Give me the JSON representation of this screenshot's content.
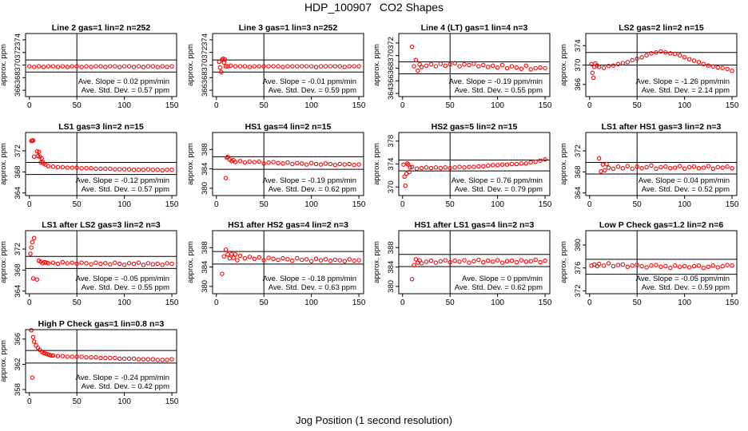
{
  "page": {
    "title_id": "HDP_100907",
    "title_text": "CO2 Shapes",
    "x_axis_title": "Jog Position (1 second resolution)"
  },
  "colors": {
    "points": "#ff0000",
    "axes": "#000000",
    "background": "#ffffff"
  },
  "chart_data": [
    {
      "type": "scatter",
      "title": "Line 2 gas=1 lin=2 n=252",
      "ylabel": "approx. ppm",
      "xlim": [
        -4,
        155
      ],
      "ylim": [
        365,
        375
      ],
      "xticks": [
        0,
        50,
        100,
        150
      ],
      "yticks": [
        366,
        368,
        370,
        372,
        374
      ],
      "hlines": [
        368.9,
        370.8
      ],
      "vline": 50,
      "slope": "Ave. Slope = 0.02 ppm/min",
      "stddev": "Ave. Std. Dev. = 0.57 ppm",
      "x": [
        0,
        5,
        10,
        15,
        20,
        25,
        30,
        35,
        40,
        45,
        50,
        55,
        60,
        65,
        70,
        75,
        80,
        85,
        90,
        95,
        100,
        105,
        110,
        115,
        120,
        125,
        130,
        135,
        140,
        145,
        150
      ],
      "y": [
        369.8,
        369.7,
        369.8,
        369.7,
        369.8,
        369.8,
        369.7,
        369.8,
        369.7,
        369.8,
        369.8,
        369.7,
        369.8,
        369.7,
        369.8,
        369.8,
        369.7,
        369.8,
        369.8,
        369.7,
        369.8,
        369.8,
        369.7,
        369.8,
        369.7,
        369.8,
        369.8,
        369.7,
        369.8,
        369.7,
        369.8
      ]
    },
    {
      "type": "scatter",
      "title": "Line 3 gas=1 lin=3 n=252",
      "ylabel": "approx. ppm",
      "xlim": [
        -4,
        155
      ],
      "ylim": [
        365,
        375
      ],
      "xticks": [
        0,
        50,
        100,
        150
      ],
      "yticks": [
        366,
        368,
        370,
        372,
        374
      ],
      "hlines": [
        368.9,
        370.8
      ],
      "vline": 50,
      "slope": "Ave. Slope = -0.01 ppm/min",
      "stddev": "Ave. Std. Dev. = 0.59 ppm",
      "x": [
        3,
        4,
        5,
        6,
        7,
        8,
        9,
        10,
        12,
        15,
        20,
        25,
        30,
        35,
        40,
        45,
        50,
        55,
        60,
        65,
        70,
        75,
        80,
        85,
        90,
        95,
        100,
        105,
        110,
        115,
        120,
        125,
        130,
        135,
        140,
        145,
        150
      ],
      "y": [
        370.5,
        369.6,
        368.9,
        370.8,
        371.0,
        370.4,
        370.9,
        369.8,
        369.8,
        369.9,
        369.8,
        369.8,
        369.8,
        369.7,
        369.8,
        369.8,
        369.8,
        369.8,
        369.8,
        369.8,
        369.7,
        369.8,
        369.8,
        369.8,
        369.8,
        369.8,
        369.8,
        369.7,
        369.8,
        369.8,
        369.8,
        369.8,
        369.8,
        369.7,
        369.8,
        369.8,
        369.8
      ]
    },
    {
      "type": "scatter",
      "title": "Line 4 (LT) gas=1 lin=4 n=3",
      "ylabel": "approx. ppm",
      "xlim": [
        -4,
        155
      ],
      "ylim": [
        363.5,
        373.5
      ],
      "xticks": [
        0,
        50,
        100,
        150
      ],
      "yticks": [
        364,
        366,
        368,
        370,
        372
      ],
      "hlines": [
        367.1,
        369.0
      ],
      "vline": 50,
      "slope": "Ave. Slope = -0.19 ppm/min",
      "stddev": "Ave. Std. Dev. = 0.55 ppm",
      "x": [
        10,
        12,
        14,
        16,
        18,
        20,
        25,
        30,
        35,
        40,
        45,
        50,
        55,
        60,
        65,
        70,
        75,
        80,
        85,
        90,
        95,
        100,
        105,
        110,
        115,
        120,
        125,
        130,
        135,
        140,
        145,
        150
      ],
      "y": [
        371.4,
        368.3,
        369.3,
        367.6,
        368.6,
        368.2,
        368.4,
        368.6,
        368.3,
        368.7,
        368.4,
        368.6,
        368.8,
        368.3,
        368.6,
        368.5,
        368.7,
        368.3,
        368.5,
        368.2,
        368.4,
        368.1,
        368.5,
        368.0,
        368.3,
        368.1,
        367.9,
        368.4,
        367.8,
        368.0,
        368.1,
        368.0
      ]
    },
    {
      "type": "scatter",
      "title": "LS2 gas=2 lin=2 n=15",
      "ylabel": "approx. ppm",
      "xlim": [
        -4,
        155
      ],
      "ylim": [
        363.5,
        376.5
      ],
      "xticks": [
        0,
        50,
        100,
        150
      ],
      "yticks": [
        366,
        370,
        374
      ],
      "hlines": [
        370.0,
        372.6
      ],
      "vline": 50,
      "slope": "Ave. Slope = -1.26 ppm/min",
      "stddev": "Ave. Std. Dev. = 2.14 ppm",
      "x": [
        2,
        3,
        4,
        5,
        6,
        8,
        10,
        15,
        20,
        25,
        30,
        35,
        40,
        45,
        50,
        55,
        60,
        65,
        70,
        75,
        80,
        85,
        90,
        95,
        100,
        105,
        110,
        115,
        120,
        125,
        130,
        135,
        140,
        145,
        150
      ],
      "y": [
        370.2,
        368.4,
        367.4,
        369.6,
        370.3,
        369.9,
        369.6,
        369.4,
        369.8,
        369.9,
        370.2,
        370.4,
        370.6,
        371.0,
        371.3,
        371.6,
        372.0,
        372.4,
        372.6,
        372.8,
        372.6,
        372.4,
        372.3,
        372.0,
        371.6,
        371.2,
        370.9,
        370.6,
        370.2,
        369.9,
        369.7,
        369.5,
        369.4,
        369.2,
        368.8
      ]
    },
    {
      "type": "scatter",
      "title": "LS1 gas=3 lin=2 n=15",
      "ylabel": "approx. ppm",
      "xlim": [
        -4,
        155
      ],
      "ylim": [
        363.5,
        375.5
      ],
      "xticks": [
        0,
        50,
        100,
        150
      ],
      "yticks": [
        364,
        368,
        372
      ],
      "hlines": [
        367.5,
        369.8
      ],
      "vline": 50,
      "slope": "Ave. Slope = -0.12 ppm/min",
      "stddev": "Ave. Std. Dev. = 0.57 ppm",
      "x": [
        2,
        3,
        4,
        5,
        8,
        9,
        10,
        11,
        12,
        13,
        14,
        15,
        17,
        20,
        25,
        30,
        35,
        40,
        45,
        50,
        55,
        60,
        65,
        70,
        75,
        80,
        85,
        90,
        95,
        100,
        105,
        110,
        115,
        120,
        125,
        130,
        135,
        140,
        145,
        150
      ],
      "y": [
        373.9,
        373.9,
        374.0,
        370.9,
        371.9,
        371.0,
        371.8,
        370.9,
        369.8,
        370.6,
        369.9,
        369.6,
        369.4,
        369.1,
        369.0,
        368.9,
        368.9,
        368.8,
        368.8,
        368.8,
        368.7,
        368.7,
        368.7,
        368.6,
        368.6,
        368.6,
        368.6,
        368.5,
        368.5,
        368.5,
        368.5,
        368.4,
        368.4,
        368.4,
        368.5,
        368.4,
        368.4,
        368.3,
        368.4,
        368.4
      ]
    },
    {
      "type": "scatter",
      "title": "HS1 gas=4 lin=2 n=15",
      "ylabel": "approx. ppm",
      "xlim": [
        -4,
        155
      ],
      "ylim": [
        378.5,
        391.5
      ],
      "xticks": [
        0,
        50,
        100,
        150
      ],
      "yticks": [
        380,
        384,
        388
      ],
      "hlines": [
        383.9,
        386.5
      ],
      "vline": 50,
      "slope": "Ave. Slope = -0.19 ppm/min",
      "stddev": "Ave. Std. Dev. = 0.62 ppm",
      "x": [
        10,
        11,
        12,
        14,
        16,
        18,
        20,
        25,
        30,
        35,
        40,
        45,
        50,
        55,
        60,
        65,
        70,
        75,
        80,
        85,
        90,
        95,
        100,
        105,
        110,
        115,
        120,
        125,
        130,
        135,
        140,
        145,
        150
      ],
      "y": [
        382.1,
        386.3,
        386.5,
        385.9,
        385.6,
        385.8,
        385.4,
        385.6,
        385.3,
        385.5,
        385.4,
        385.5,
        385.1,
        385.3,
        385.4,
        385.2,
        385.1,
        385.3,
        385.0,
        385.2,
        385.1,
        384.9,
        385.2,
        385.0,
        384.9,
        385.1,
        385.0,
        384.8,
        385.0,
        384.9,
        385.0,
        384.8,
        384.9
      ]
    },
    {
      "type": "scatter",
      "title": "HS2 gas=5 lin=2 n=15",
      "ylabel": "approx. ppm",
      "xlim": [
        -4,
        155
      ],
      "ylim": [
        368.5,
        379.5
      ],
      "xticks": [
        0,
        50,
        100,
        150
      ],
      "yticks": [
        370,
        374,
        378
      ],
      "hlines": [
        372.8,
        374.7
      ],
      "vline": 50,
      "slope": "Ave. Slope = 0.76 ppm/min",
      "stddev": "Ave. Std. Dev. = 0.79 ppm",
      "x": [
        1,
        2,
        3,
        4,
        5,
        6,
        7,
        8,
        10,
        15,
        20,
        25,
        30,
        35,
        40,
        45,
        50,
        55,
        60,
        65,
        70,
        75,
        80,
        85,
        90,
        95,
        100,
        105,
        110,
        115,
        120,
        125,
        130,
        135,
        140,
        145,
        150
      ],
      "y": [
        373.9,
        371.8,
        370.2,
        372.3,
        374.1,
        373.9,
        372.6,
        373.4,
        373.5,
        373.2,
        373.3,
        373.4,
        373.3,
        373.4,
        373.3,
        373.4,
        373.3,
        373.4,
        373.5,
        373.4,
        373.5,
        373.5,
        373.6,
        373.6,
        373.7,
        373.8,
        373.8,
        373.9,
        373.9,
        374.0,
        374.0,
        374.1,
        374.1,
        374.3,
        374.4,
        374.6,
        374.8
      ]
    },
    {
      "type": "scatter",
      "title": "LS1 after HS1 gas=3 lin=2 n=3",
      "ylabel": "approx. ppm",
      "xlim": [
        -4,
        155
      ],
      "ylim": [
        363.5,
        375.5
      ],
      "xticks": [
        0,
        50,
        100,
        150
      ],
      "yticks": [
        364,
        368,
        372
      ],
      "hlines": [
        367.6,
        369.8
      ],
      "vline": 50,
      "slope": "Ave. Slope = 0.04 ppm/min",
      "stddev": "Ave. Std. Dev. = 0.52 ppm",
      "x": [
        10,
        12,
        14,
        16,
        18,
        20,
        25,
        30,
        35,
        40,
        45,
        50,
        55,
        60,
        65,
        70,
        75,
        80,
        85,
        90,
        95,
        100,
        105,
        110,
        115,
        120,
        125,
        130,
        135,
        140,
        145,
        150
      ],
      "y": [
        370.6,
        368.1,
        369.4,
        368.3,
        369.5,
        368.8,
        368.6,
        369.0,
        368.7,
        369.1,
        368.6,
        369.0,
        368.7,
        368.9,
        369.2,
        368.6,
        368.9,
        369.0,
        368.7,
        368.8,
        369.1,
        368.6,
        368.9,
        369.0,
        368.7,
        368.8,
        369.1,
        368.6,
        368.9,
        368.8,
        369.0,
        368.7
      ]
    },
    {
      "type": "scatter",
      "title": "LS1 after LS2 gas=3 lin=2 n=3",
      "ylabel": "approx. ppm",
      "xlim": [
        -4,
        155
      ],
      "ylim": [
        363.5,
        375.5
      ],
      "xticks": [
        0,
        50,
        100,
        150
      ],
      "yticks": [
        364,
        368,
        372
      ],
      "hlines": [
        368.3,
        370.6
      ],
      "vline": 50,
      "slope": "Ave. Slope = -0.05 ppm/min",
      "stddev": "Ave. Std. Dev. = 0.55 ppm",
      "x": [
        1,
        2,
        3,
        4,
        5,
        8,
        10,
        12,
        14,
        16,
        18,
        20,
        25,
        30,
        35,
        40,
        45,
        50,
        55,
        60,
        65,
        70,
        75,
        80,
        85,
        90,
        95,
        100,
        105,
        110,
        115,
        120,
        125,
        130,
        135,
        140,
        145,
        150
      ],
      "y": [
        371.1,
        372.3,
        373.3,
        366.4,
        374.1,
        366.2,
        369.8,
        369.6,
        369.3,
        369.5,
        369.4,
        369.3,
        369.4,
        369.2,
        369.5,
        369.3,
        369.4,
        369.2,
        369.4,
        369.3,
        369.1,
        369.4,
        369.2,
        369.3,
        369.1,
        369.4,
        369.2,
        369.0,
        369.3,
        369.2,
        369.4,
        369.0,
        369.3,
        369.1,
        369.2,
        369.0,
        369.3,
        369.2
      ]
    },
    {
      "type": "scatter",
      "title": "HS1 after HS2 gas=4 lin=2 n=3",
      "ylabel": "approx. ppm",
      "xlim": [
        -4,
        155
      ],
      "ylim": [
        378.5,
        391.5
      ],
      "xticks": [
        0,
        50,
        100,
        150
      ],
      "yticks": [
        380,
        384,
        388
      ],
      "hlines": [
        384.6,
        387.2
      ],
      "vline": 50,
      "slope": "Ave. Slope = -0.18 ppm/min",
      "stddev": "Ave. Std. Dev. = 0.63 ppm",
      "x": [
        6,
        8,
        10,
        12,
        14,
        16,
        18,
        20,
        22,
        25,
        30,
        35,
        40,
        45,
        50,
        55,
        60,
        65,
        70,
        75,
        80,
        85,
        90,
        95,
        100,
        105,
        110,
        115,
        120,
        125,
        130,
        135,
        140,
        145,
        150
      ],
      "y": [
        382.6,
        386.2,
        387.6,
        386.6,
        385.8,
        386.7,
        385.9,
        386.6,
        385.4,
        386.3,
        385.8,
        386.1,
        385.7,
        386.0,
        385.4,
        385.9,
        385.7,
        385.5,
        385.8,
        385.6,
        385.3,
        385.8,
        385.5,
        385.6,
        385.2,
        385.7,
        385.4,
        385.6,
        385.3,
        385.5,
        385.4,
        385.2,
        385.6,
        385.3,
        385.4
      ]
    },
    {
      "type": "scatter",
      "title": "HS1 after LS1 gas=4 lin=2 n=3",
      "ylabel": "approx. ppm",
      "xlim": [
        -4,
        155
      ],
      "ylim": [
        378.5,
        391.5
      ],
      "xticks": [
        0,
        50,
        100,
        150
      ],
      "yticks": [
        380,
        384,
        388
      ],
      "hlines": [
        384.1,
        386.6
      ],
      "vline": 50,
      "slope": "Ave. Slope = 0 ppm/min",
      "stddev": "Ave. Std. Dev. = 0.62 ppm",
      "x": [
        10,
        12,
        14,
        16,
        18,
        20,
        25,
        30,
        35,
        40,
        45,
        50,
        55,
        60,
        65,
        70,
        75,
        80,
        85,
        90,
        95,
        100,
        105,
        110,
        115,
        120,
        125,
        130,
        135,
        140,
        145,
        150
      ],
      "y": [
        381.5,
        384.4,
        385.6,
        384.9,
        385.4,
        384.8,
        385.1,
        385.3,
        384.9,
        385.2,
        385.4,
        385.0,
        385.3,
        385.1,
        385.4,
        384.9,
        385.2,
        385.5,
        385.0,
        385.3,
        385.1,
        385.4,
        384.9,
        385.2,
        385.3,
        385.0,
        385.4,
        385.1,
        385.2,
        385.5,
        385.0,
        385.3
      ]
    },
    {
      "type": "scatter",
      "title": "Low P Check gas=1.2 lin=2 n=6",
      "ylabel": "approx. ppm",
      "xlim": [
        -4,
        155
      ],
      "ylim": [
        371.5,
        382.5
      ],
      "xticks": [
        0,
        50,
        100,
        150
      ],
      "yticks": [
        372,
        376,
        380
      ],
      "hlines": [
        374.9,
        377.5
      ],
      "vline": 50,
      "slope": "Ave. Slope = -0.05 ppm/min",
      "stddev": "Ave. Std. Dev. = 0.59 ppm",
      "x": [
        2,
        5,
        8,
        10,
        15,
        20,
        25,
        30,
        35,
        40,
        45,
        50,
        55,
        60,
        65,
        70,
        75,
        80,
        85,
        90,
        95,
        100,
        105,
        110,
        115,
        120,
        125,
        130,
        135,
        140,
        145,
        150
      ],
      "y": [
        376.4,
        376.6,
        376.3,
        376.7,
        376.4,
        376.8,
        376.3,
        376.5,
        376.6,
        376.2,
        376.4,
        376.5,
        376.3,
        376.1,
        376.4,
        376.5,
        376.2,
        376.3,
        376.0,
        376.4,
        376.2,
        376.3,
        376.1,
        376.3,
        376.4,
        376.0,
        376.2,
        376.4,
        376.1,
        376.3,
        376.5,
        376.4
      ]
    },
    {
      "type": "scatter",
      "title": "High P Check gas=1 lin=0.8 n=3",
      "ylabel": "approx. ppm",
      "xlim": [
        -4,
        155
      ],
      "ylim": [
        357.5,
        367.5
      ],
      "xticks": [
        0,
        50,
        100,
        150
      ],
      "yticks": [
        358,
        362,
        366
      ],
      "hlines": [
        362.2,
        364.2
      ],
      "vline": 50,
      "slope": "Ave. Slope = -0.24 ppm/min",
      "stddev": "Ave. Std. Dev. = 0.42 ppm",
      "x": [
        2,
        3,
        4,
        5,
        7,
        9,
        11,
        13,
        15,
        17,
        19,
        21,
        23,
        25,
        30,
        35,
        40,
        45,
        50,
        55,
        60,
        65,
        70,
        75,
        80,
        85,
        90,
        95,
        100,
        105,
        110,
        115,
        120,
        125,
        130,
        135,
        140,
        145,
        150
      ],
      "y": [
        367.4,
        359.9,
        366.3,
        365.6,
        365.0,
        364.6,
        364.3,
        364.0,
        363.8,
        363.7,
        363.6,
        363.5,
        363.4,
        363.4,
        363.3,
        363.3,
        363.2,
        363.2,
        363.2,
        363.2,
        363.1,
        363.1,
        363.1,
        363.0,
        363.0,
        363.0,
        363.0,
        362.9,
        362.9,
        362.9,
        362.9,
        362.8,
        362.8,
        362.8,
        362.8,
        362.7,
        362.7,
        362.7,
        362.8
      ]
    }
  ]
}
